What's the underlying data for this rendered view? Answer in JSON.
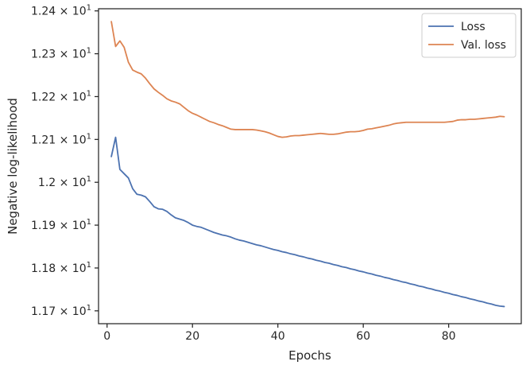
{
  "chart_data": {
    "type": "line",
    "xlabel": "Epochs",
    "ylabel": "Negative log-likelihood",
    "xlim": [
      -2,
      97
    ],
    "ylim": [
      11.67,
      12.405
    ],
    "x_ticks": [
      0,
      20,
      40,
      60,
      80
    ],
    "x_tick_labels": [
      "0",
      "20",
      "40",
      "60",
      "80"
    ],
    "y_ticks": [
      11.7,
      11.8,
      11.9,
      12.0,
      12.1,
      12.2,
      12.3,
      12.4
    ],
    "y_tick_mantissas": [
      "1.17",
      "1.18",
      "1.19",
      "1.2",
      "1.21",
      "1.22",
      "1.23",
      "1.24"
    ],
    "y_tick_base": "× 10",
    "y_tick_exponent": "1",
    "grid": false,
    "legend_position": "top-right",
    "series": [
      {
        "name": "Loss",
        "color": "#4c72b0",
        "x": [
          1,
          2,
          3,
          4,
          5,
          6,
          7,
          8,
          9,
          10,
          11,
          12,
          13,
          14,
          15,
          16,
          17,
          18,
          19,
          20,
          21,
          22,
          23,
          24,
          25,
          26,
          27,
          28,
          29,
          30,
          31,
          32,
          33,
          34,
          35,
          36,
          37,
          38,
          39,
          40,
          41,
          42,
          43,
          44,
          45,
          46,
          47,
          48,
          49,
          50,
          51,
          52,
          53,
          54,
          55,
          56,
          57,
          58,
          59,
          60,
          61,
          62,
          63,
          64,
          65,
          66,
          67,
          68,
          69,
          70,
          71,
          72,
          73,
          74,
          75,
          76,
          77,
          78,
          79,
          80,
          81,
          82,
          83,
          84,
          85,
          86,
          87,
          88,
          89,
          90,
          91,
          92,
          93
        ],
        "y": [
          12.06,
          12.105,
          12.03,
          12.02,
          12.01,
          11.985,
          11.972,
          11.97,
          11.966,
          11.955,
          11.943,
          11.938,
          11.937,
          11.932,
          11.924,
          11.917,
          11.914,
          11.911,
          11.906,
          11.9,
          11.897,
          11.895,
          11.891,
          11.887,
          11.883,
          11.88,
          11.877,
          11.875,
          11.872,
          11.868,
          11.865,
          11.863,
          11.86,
          11.857,
          11.854,
          11.852,
          11.849,
          11.846,
          11.843,
          11.841,
          11.838,
          11.836,
          11.833,
          11.831,
          11.828,
          11.826,
          11.823,
          11.821,
          11.818,
          11.816,
          11.813,
          11.811,
          11.808,
          11.806,
          11.803,
          11.801,
          11.798,
          11.796,
          11.793,
          11.791,
          11.788,
          11.786,
          11.783,
          11.781,
          11.778,
          11.776,
          11.773,
          11.771,
          11.768,
          11.766,
          11.763,
          11.761,
          11.758,
          11.756,
          11.753,
          11.751,
          11.748,
          11.746,
          11.743,
          11.741,
          11.738,
          11.736,
          11.733,
          11.731,
          11.728,
          11.726,
          11.723,
          11.721,
          11.718,
          11.716,
          11.713,
          11.711,
          11.71
        ]
      },
      {
        "name": "Val. loss",
        "color": "#dd8452",
        "x": [
          1,
          2,
          3,
          4,
          5,
          6,
          7,
          8,
          9,
          10,
          11,
          12,
          13,
          14,
          15,
          16,
          17,
          18,
          19,
          20,
          21,
          22,
          23,
          24,
          25,
          26,
          27,
          28,
          29,
          30,
          31,
          32,
          33,
          34,
          35,
          36,
          37,
          38,
          39,
          40,
          41,
          42,
          43,
          44,
          45,
          46,
          47,
          48,
          49,
          50,
          51,
          52,
          53,
          54,
          55,
          56,
          57,
          58,
          59,
          60,
          61,
          62,
          63,
          64,
          65,
          66,
          67,
          68,
          69,
          70,
          71,
          72,
          73,
          74,
          75,
          76,
          77,
          78,
          79,
          80,
          81,
          82,
          83,
          84,
          85,
          86,
          87,
          88,
          89,
          90,
          91,
          92,
          93
        ],
        "y": [
          12.375,
          12.317,
          12.33,
          12.315,
          12.28,
          12.262,
          12.257,
          12.253,
          12.243,
          12.23,
          12.218,
          12.21,
          12.203,
          12.195,
          12.19,
          12.187,
          12.183,
          12.175,
          12.167,
          12.161,
          12.157,
          12.152,
          12.147,
          12.142,
          12.139,
          12.135,
          12.132,
          12.128,
          12.124,
          12.123,
          12.123,
          12.123,
          12.123,
          12.123,
          12.122,
          12.12,
          12.118,
          12.115,
          12.111,
          12.107,
          12.105,
          12.106,
          12.108,
          12.109,
          12.109,
          12.11,
          12.111,
          12.112,
          12.113,
          12.114,
          12.113,
          12.112,
          12.112,
          12.113,
          12.115,
          12.117,
          12.118,
          12.118,
          12.119,
          12.121,
          12.124,
          12.125,
          12.127,
          12.129,
          12.131,
          12.133,
          12.136,
          12.138,
          12.139,
          12.14,
          12.14,
          12.14,
          12.14,
          12.14,
          12.14,
          12.14,
          12.14,
          12.14,
          12.14,
          12.141,
          12.142,
          12.145,
          12.146,
          12.146,
          12.147,
          12.147,
          12.148,
          12.149,
          12.15,
          12.151,
          12.152,
          12.154,
          12.153
        ]
      }
    ]
  }
}
